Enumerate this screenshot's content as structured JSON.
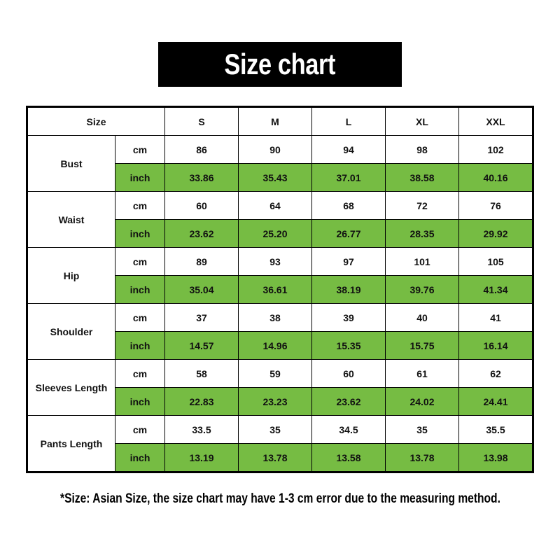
{
  "title": "Size chart",
  "table": {
    "header_label": "Size",
    "sizes": [
      "S",
      "M",
      "L",
      "XL",
      "XXL"
    ],
    "units": {
      "cm": "cm",
      "inch": "inch"
    },
    "measurements": [
      {
        "name": "Bust",
        "cm": [
          "86",
          "90",
          "94",
          "98",
          "102"
        ],
        "inch": [
          "33.86",
          "35.43",
          "37.01",
          "38.58",
          "40.16"
        ]
      },
      {
        "name": "Waist",
        "cm": [
          "60",
          "64",
          "68",
          "72",
          "76"
        ],
        "inch": [
          "23.62",
          "25.20",
          "26.77",
          "28.35",
          "29.92"
        ]
      },
      {
        "name": "Hip",
        "cm": [
          "89",
          "93",
          "97",
          "101",
          "105"
        ],
        "inch": [
          "35.04",
          "36.61",
          "38.19",
          "39.76",
          "41.34"
        ]
      },
      {
        "name": "Shoulder",
        "cm": [
          "37",
          "38",
          "39",
          "40",
          "41"
        ],
        "inch": [
          "14.57",
          "14.96",
          "15.35",
          "15.75",
          "16.14"
        ]
      },
      {
        "name": "Sleeves Length",
        "cm": [
          "58",
          "59",
          "60",
          "61",
          "62"
        ],
        "inch": [
          "22.83",
          "23.23",
          "23.62",
          "24.02",
          "24.41"
        ]
      },
      {
        "name": "Pants Length",
        "cm": [
          "33.5",
          "35",
          "34.5",
          "35",
          "35.5"
        ],
        "inch": [
          "13.19",
          "13.78",
          "13.58",
          "13.78",
          "13.98"
        ]
      }
    ]
  },
  "note": "*Size: Asian Size, the size chart may have 1-3 cm error due to the measuring method.",
  "colors": {
    "inch_row": "#76bc43",
    "title_bg": "#000000"
  }
}
